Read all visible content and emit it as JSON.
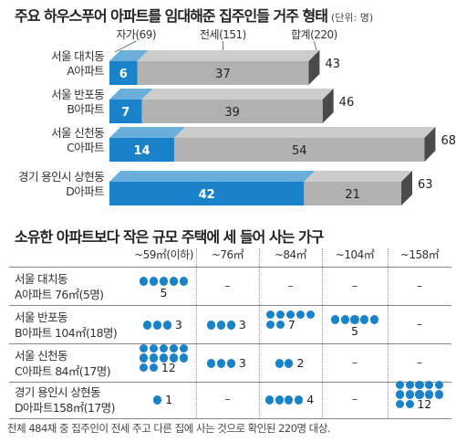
{
  "chart_data": [
    {
      "type": "bar",
      "orientation": "horizontal",
      "stacked": true,
      "title": "주요 하우스푸어 아파트를 임대해준 집주인들 거주 형태",
      "unit_note": "(단위: 명)",
      "categories": [
        "서울 대치동 A아파트",
        "서울 반포동 B아파트",
        "서울 신천동 C아파트",
        "경기 용인시 상현동 D아파트"
      ],
      "category_lines": [
        [
          "서울 대치동",
          "A아파트"
        ],
        [
          "서울 반포동",
          "B아파트"
        ],
        [
          "서울 신천동",
          "C아파트"
        ],
        [
          "경기 용인시 상현동",
          "D아파트"
        ]
      ],
      "series": [
        {
          "name": "자가(69)",
          "values": [
            6,
            7,
            14,
            42
          ],
          "color": "#1a82c8"
        },
        {
          "name": "전세(151)",
          "values": [
            37,
            39,
            54,
            21
          ],
          "color": "#b1b1b1"
        }
      ],
      "totals_label": "합계(220)",
      "totals": [
        43,
        46,
        68,
        63
      ],
      "xlim": [
        0,
        68
      ]
    },
    {
      "type": "table",
      "title": "소유한 아파트보다 작은 규모 주택에 세 들어 사는 가구",
      "columns": [
        "~59㎡(이하)",
        "~76㎡",
        "~84㎡",
        "~104㎡",
        "~158㎡"
      ],
      "rows": [
        {
          "lines": [
            "서울 대치동",
            "A아파트 76㎡(5명)"
          ],
          "cells": [
            5,
            null,
            null,
            null,
            null
          ]
        },
        {
          "lines": [
            "서울 반포동",
            "B아파트 104㎡(18명)"
          ],
          "cells": [
            3,
            3,
            7,
            5,
            null
          ]
        },
        {
          "lines": [
            "서울 신천동",
            "C아파트 84㎡(17명)"
          ],
          "cells": [
            12,
            3,
            2,
            null,
            null
          ]
        },
        {
          "lines": [
            "경기 용인시 상현동",
            "D아파트158㎡(17명)"
          ],
          "cells": [
            1,
            null,
            4,
            null,
            12
          ]
        }
      ],
      "empty_mark": "–",
      "dot_color": "#1a82c8"
    }
  ],
  "footnote": "전체 484채 중 집주인이 전세 주고 다른 집에 사는 것으로 확인된 220명 대상."
}
